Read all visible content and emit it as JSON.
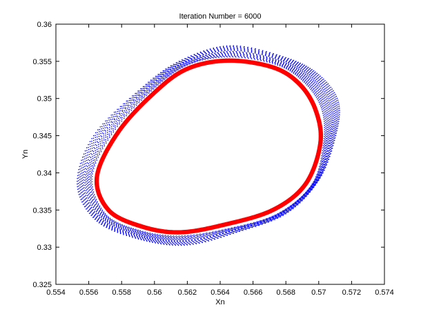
{
  "chart_data": {
    "type": "scatter",
    "title": "Iteration Number = 6000",
    "xlabel": "Xn",
    "ylabel": "Yn",
    "xlim": [
      0.554,
      0.574
    ],
    "ylim": [
      0.325,
      0.36
    ],
    "xticks": [
      "0.554",
      "0.556",
      "0.558",
      "0.56",
      "0.562",
      "0.564",
      "0.566",
      "0.568",
      "0.57",
      "0.572",
      "0.574"
    ],
    "yticks": [
      "0.325",
      "0.33",
      "0.335",
      "0.34",
      "0.345",
      "0.35",
      "0.355",
      "0.36"
    ],
    "grid": false,
    "series": [
      {
        "color": "#0000ff",
        "marker": "dot",
        "shape": "closed-loop band",
        "outer_boundary": [
          [
            0.5646,
            0.3571
          ],
          [
            0.568,
            0.3555
          ],
          [
            0.57,
            0.3532
          ],
          [
            0.5712,
            0.3495
          ],
          [
            0.571,
            0.3447
          ],
          [
            0.57,
            0.339
          ],
          [
            0.568,
            0.3345
          ],
          [
            0.565,
            0.332
          ],
          [
            0.562,
            0.3303
          ],
          [
            0.5592,
            0.331
          ],
          [
            0.5565,
            0.3335
          ],
          [
            0.5553,
            0.3385
          ],
          [
            0.5563,
            0.345
          ],
          [
            0.559,
            0.351
          ],
          [
            0.5615,
            0.355
          ]
        ],
        "inner_boundary": [
          [
            0.5646,
            0.3556
          ],
          [
            0.5675,
            0.3545
          ],
          [
            0.5692,
            0.352
          ],
          [
            0.5702,
            0.3485
          ],
          [
            0.5703,
            0.344
          ],
          [
            0.5696,
            0.3385
          ],
          [
            0.5675,
            0.3345
          ],
          [
            0.5645,
            0.3325
          ],
          [
            0.5615,
            0.3315
          ],
          [
            0.559,
            0.3323
          ],
          [
            0.557,
            0.3345
          ],
          [
            0.5562,
            0.3395
          ],
          [
            0.5575,
            0.3455
          ],
          [
            0.5598,
            0.351
          ],
          [
            0.562,
            0.3545
          ]
        ]
      },
      {
        "color": "#ff0000",
        "marker": "star",
        "shape": "closed loop",
        "points": [
          [
            0.5645,
            0.3551
          ],
          [
            0.5672,
            0.3542
          ],
          [
            0.5688,
            0.352
          ],
          [
            0.5698,
            0.3485
          ],
          [
            0.5701,
            0.344
          ],
          [
            0.5692,
            0.3385
          ],
          [
            0.5672,
            0.335
          ],
          [
            0.5642,
            0.333
          ],
          [
            0.5615,
            0.332
          ],
          [
            0.5592,
            0.3328
          ],
          [
            0.5572,
            0.335
          ],
          [
            0.5565,
            0.3395
          ],
          [
            0.5578,
            0.3455
          ],
          [
            0.56,
            0.3508
          ],
          [
            0.562,
            0.354
          ]
        ]
      }
    ]
  }
}
